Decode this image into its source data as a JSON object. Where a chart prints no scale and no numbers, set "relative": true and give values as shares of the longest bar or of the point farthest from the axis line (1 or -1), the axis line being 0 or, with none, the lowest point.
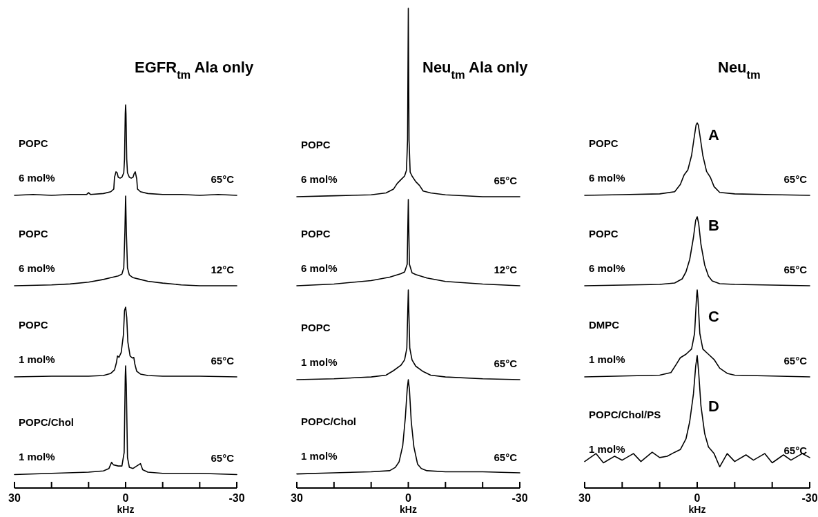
{
  "chart_data": [
    {
      "type": "line",
      "title": "EGFR$_{tm}$ Ala only",
      "relative": true,
      "xlim": [
        30,
        -30
      ],
      "tick_labels": false,
      "annotations": [
        "POPC",
        "6 mol%",
        "65°C"
      ],
      "x": [
        30,
        25,
        20,
        15,
        10.5,
        10,
        9.5,
        6,
        4,
        3.2,
        3,
        2.6,
        2.3,
        2,
        1.5,
        1,
        0.5,
        0.3,
        0.1,
        0,
        -0.1,
        -0.3,
        -0.5,
        -1,
        -1.5,
        -2,
        -2.3,
        -2.6,
        -3,
        -3.2,
        -4,
        -6,
        -10,
        -15,
        -20,
        -25,
        -30
      ],
      "series": [
        {
          "color": "#000000",
          "values": [
            0,
            0.01,
            0,
            0.01,
            0.01,
            0.03,
            0.01,
            0.02,
            0.04,
            0.07,
            0.2,
            0.26,
            0.25,
            0.2,
            0.19,
            0.2,
            0.25,
            0.4,
            0.9,
            1,
            0.9,
            0.4,
            0.25,
            0.2,
            0.19,
            0.2,
            0.24,
            0.26,
            0.18,
            0.07,
            0.04,
            0.02,
            0.01,
            0.01,
            0,
            0.01,
            0
          ]
        }
      ]
    },
    {
      "type": "line",
      "relative": true,
      "xlim": [
        30,
        -30
      ],
      "tick_labels": false,
      "annotations": [
        "POPC",
        "6 mol%",
        "12°C"
      ],
      "x": [
        30,
        20,
        15,
        10,
        6,
        4,
        2,
        1,
        0.5,
        0.2,
        0,
        -0.2,
        -0.5,
        -1,
        -2,
        -4,
        -6,
        -10,
        -15,
        -20,
        -30
      ],
      "series": [
        {
          "color": "#000000",
          "values": [
            0,
            0.01,
            0.02,
            0.04,
            0.07,
            0.09,
            0.11,
            0.13,
            0.2,
            0.6,
            1,
            0.6,
            0.2,
            0.12,
            0.09,
            0.07,
            0.05,
            0.03,
            0.01,
            0,
            0
          ]
        }
      ]
    },
    {
      "type": "line",
      "relative": true,
      "xlim": [
        30,
        -30
      ],
      "tick_labels": false,
      "annotations": [
        "POPC",
        "1 mol%",
        "65°C"
      ],
      "x": [
        30,
        20,
        10,
        6,
        4,
        3,
        2.5,
        2.2,
        1.8,
        1.2,
        0.6,
        0.3,
        0,
        -0.3,
        -0.6,
        -1.2,
        -1.8,
        -2.2,
        -2.5,
        -3,
        -4,
        -6,
        -10,
        -20,
        -30
      ],
      "series": [
        {
          "color": "#000000",
          "values": [
            0,
            0.01,
            0.01,
            0.02,
            0.05,
            0.1,
            0.2,
            0.3,
            0.28,
            0.35,
            0.6,
            0.95,
            1,
            0.85,
            0.5,
            0.3,
            0.27,
            0.28,
            0.18,
            0.08,
            0.04,
            0.02,
            0.01,
            0.01,
            0
          ]
        }
      ]
    },
    {
      "type": "line",
      "relative": true,
      "xlim": [
        30,
        -30
      ],
      "xticks": [
        30,
        {
          "value": 20,
          "label": null
        },
        {
          "value": 10,
          "label": null
        },
        0,
        {
          "value": -10,
          "label": null
        },
        {
          "value": -20,
          "label": null
        },
        -30
      ],
      "tick_labels": "x",
      "xlabel": "kHz",
      "annotations": [
        "POPC/Chol",
        "1 mol%",
        "65°C"
      ],
      "x": [
        30,
        20,
        10,
        6,
        4.5,
        3.8,
        3.3,
        2,
        1,
        0.4,
        0.1,
        0,
        -0.2,
        -0.5,
        -1,
        -2,
        -3,
        -4,
        -4.6,
        -6,
        -10,
        -20,
        -30
      ],
      "series": [
        {
          "color": "#000000",
          "values": [
            0.11,
            0.12,
            0.13,
            0.14,
            0.16,
            0.21,
            0.19,
            0.18,
            0.18,
            0.29,
            0.91,
            1,
            0.82,
            0.25,
            0.17,
            0.16,
            0.18,
            0.2,
            0.15,
            0.13,
            0.12,
            0.12,
            0.11
          ]
        }
      ]
    },
    {
      "type": "line",
      "title": "Neu$_{tm}$ Ala only",
      "relative": true,
      "xlim": [
        30,
        -30
      ],
      "tick_labels": false,
      "annotations": [
        "POPC",
        "6 mol%",
        "65°C"
      ],
      "x": [
        30,
        20,
        10,
        6,
        4,
        3,
        2,
        1,
        0.5,
        0.2,
        0,
        -0.2,
        -0.5,
        -1,
        -2,
        -3,
        -4,
        -6,
        -10,
        -20,
        -30
      ],
      "series": [
        {
          "color": "#000000",
          "values": [
            0,
            0.005,
            0.01,
            0.02,
            0.04,
            0.07,
            0.09,
            0.11,
            0.14,
            0.3,
            1,
            0.3,
            0.13,
            0.11,
            0.08,
            0.06,
            0.03,
            0.02,
            0.01,
            0,
            0
          ]
        }
      ]
    },
    {
      "type": "line",
      "relative": true,
      "xlim": [
        30,
        -30
      ],
      "tick_labels": false,
      "annotations": [
        "POPC",
        "6 mol%",
        "12°C"
      ],
      "x": [
        30,
        20,
        10,
        5,
        2,
        1,
        0.3,
        0,
        -0.3,
        -1,
        -2,
        -5,
        -10,
        -20,
        -30
      ],
      "series": [
        {
          "color": "#000000",
          "values": [
            0,
            0.02,
            0.06,
            0.1,
            0.14,
            0.16,
            0.25,
            1,
            0.25,
            0.15,
            0.13,
            0.09,
            0.05,
            0.02,
            0
          ]
        }
      ]
    },
    {
      "type": "line",
      "relative": true,
      "xlim": [
        30,
        -30
      ],
      "tick_labels": false,
      "annotations": [
        "POPC",
        "1 mol%",
        "65°C"
      ],
      "x": [
        30,
        20,
        10,
        6,
        4,
        2,
        1,
        0.4,
        0,
        -0.4,
        -1,
        -2,
        -4,
        -6,
        -10,
        -20,
        -30
      ],
      "series": [
        {
          "color": "#000000",
          "values": [
            0,
            0.01,
            0.03,
            0.05,
            0.1,
            0.16,
            0.22,
            0.35,
            1,
            0.35,
            0.22,
            0.15,
            0.09,
            0.05,
            0.03,
            0.01,
            0
          ]
        }
      ]
    },
    {
      "type": "line",
      "relative": true,
      "xlim": [
        30,
        -30
      ],
      "xticks": [
        30,
        {
          "value": 20,
          "label": null
        },
        {
          "value": 10,
          "label": null
        },
        0,
        {
          "value": -10,
          "label": null
        },
        {
          "value": -20,
          "label": null
        },
        -30
      ],
      "tick_labels": "x",
      "xlabel": "kHz",
      "annotations": [
        "POPC/Chol",
        "1 mol%",
        "65°C"
      ],
      "x": [
        30,
        20,
        10,
        5,
        3.5,
        2.5,
        1.5,
        0.8,
        0.3,
        0,
        -0.3,
        -0.8,
        -1.5,
        -2.5,
        -3.5,
        -5,
        -10,
        -20,
        -30
      ],
      "series": [
        {
          "color": "#000000",
          "values": [
            0.13,
            0.14,
            0.15,
            0.16,
            0.19,
            0.24,
            0.39,
            0.65,
            0.91,
            1,
            0.91,
            0.61,
            0.38,
            0.22,
            0.18,
            0.16,
            0.15,
            0.15,
            0.14
          ]
        }
      ]
    },
    {
      "type": "line",
      "title": "Neu$_{tm}$",
      "relative": true,
      "xlim": [
        30,
        -30
      ],
      "tick_labels": false,
      "annotations": [
        "POPC",
        "6 mol%",
        "65°C",
        "A"
      ],
      "x": [
        30,
        20,
        10,
        6,
        4.5,
        3.5,
        2.5,
        1.5,
        0.8,
        0.3,
        0,
        -0.3,
        -0.8,
        -1.5,
        -2.5,
        -3.5,
        -4.5,
        -6,
        -10,
        -20,
        -30
      ],
      "series": [
        {
          "color": "#000000",
          "values": [
            0,
            0.01,
            0.02,
            0.05,
            0.15,
            0.28,
            0.35,
            0.55,
            0.8,
            0.97,
            1,
            0.97,
            0.8,
            0.55,
            0.33,
            0.25,
            0.12,
            0.04,
            0.02,
            0.01,
            0
          ]
        }
      ]
    },
    {
      "type": "line",
      "relative": true,
      "xlim": [
        30,
        -30
      ],
      "tick_labels": false,
      "annotations": [
        "POPC",
        "6 mol%",
        "65°C",
        "B"
      ],
      "x": [
        30,
        20,
        10,
        6,
        4,
        3,
        2,
        1,
        0.4,
        0,
        -0.4,
        -1,
        -2,
        -3,
        -4,
        -6,
        -10,
        -20,
        -30
      ],
      "series": [
        {
          "color": "#000000",
          "values": [
            0,
            0.01,
            0.02,
            0.04,
            0.1,
            0.2,
            0.38,
            0.7,
            0.95,
            1,
            0.9,
            0.6,
            0.3,
            0.14,
            0.07,
            0.03,
            0.02,
            0.01,
            0
          ]
        }
      ]
    },
    {
      "type": "line",
      "relative": true,
      "xlim": [
        30,
        -30
      ],
      "tick_labels": false,
      "annotations": [
        "DMPC",
        "1 mol%",
        "65°C",
        "C"
      ],
      "x": [
        30,
        20,
        10,
        7,
        5.5,
        4.5,
        3,
        1.5,
        0.7,
        0.2,
        0,
        -0.2,
        -0.7,
        -1.5,
        -3,
        -4.5,
        -6,
        -8,
        -10,
        -20,
        -30
      ],
      "series": [
        {
          "color": "#000000",
          "values": [
            0,
            0.01,
            0.02,
            0.05,
            0.15,
            0.22,
            0.26,
            0.32,
            0.5,
            0.9,
            1,
            0.9,
            0.5,
            0.32,
            0.26,
            0.2,
            0.1,
            0.04,
            0.02,
            0.01,
            0
          ]
        }
      ]
    },
    {
      "type": "line",
      "relative": true,
      "xlim": [
        30,
        -30
      ],
      "xticks": [
        30,
        {
          "value": 20,
          "label": null
        },
        {
          "value": 10,
          "label": null
        },
        0,
        {
          "value": -10,
          "label": null
        },
        {
          "value": -20,
          "label": null
        },
        -30
      ],
      "tick_labels": "x",
      "xlabel": "kHz",
      "annotations": [
        "POPC/Chol/PS",
        "1 mol%",
        "65°C",
        "D"
      ],
      "x": [
        30,
        27,
        25,
        22,
        20,
        17,
        15,
        12,
        10,
        8,
        6,
        4.5,
        3,
        2,
        1,
        0.4,
        0,
        -0.4,
        -1,
        -2,
        -3,
        -4.5,
        -6,
        -8,
        -10,
        -13,
        -15,
        -18,
        -20,
        -23,
        -25,
        -28,
        -30
      ],
      "series": [
        {
          "color": "#000000",
          "values": [
            0.2,
            0.26,
            0.19,
            0.24,
            0.21,
            0.26,
            0.2,
            0.27,
            0.23,
            0.24,
            0.27,
            0.29,
            0.37,
            0.5,
            0.71,
            0.92,
            1,
            0.87,
            0.62,
            0.41,
            0.31,
            0.26,
            0.16,
            0.26,
            0.2,
            0.25,
            0.21,
            0.26,
            0.19,
            0.25,
            0.21,
            0.26,
            0.23
          ]
        }
      ]
    }
  ]
}
